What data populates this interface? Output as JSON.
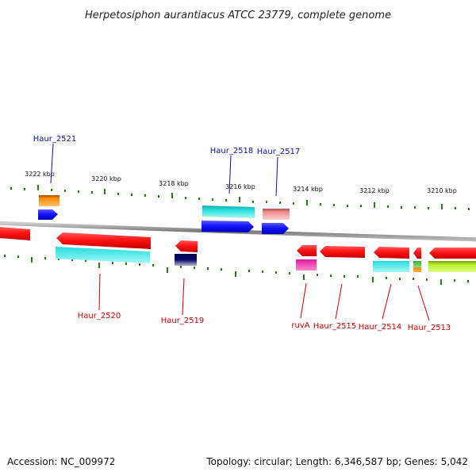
{
  "title": "Herpetosiphon aurantiacus ATCC 23779, complete genome",
  "footer": {
    "accession": "Accession: NC_009972",
    "summary": "Topology: circular; Length: 6,346,587 bp; Genes: 5,042"
  },
  "scale_labels": [
    "3222 kbp",
    "3220 kbp",
    "3218 kbp",
    "3216 kbp",
    "3214 kbp",
    "3212 kbp",
    "3210 kbp"
  ],
  "gene_labels": [
    {
      "text": "Haur_2521",
      "strand": "forward"
    },
    {
      "text": "Haur_2518",
      "strand": "forward"
    },
    {
      "text": "Haur_2517",
      "strand": "forward"
    },
    {
      "text": "Haur_2520",
      "strand": "reverse"
    },
    {
      "text": "Haur_2519",
      "strand": "reverse"
    },
    {
      "text": "ruvA",
      "strand": "reverse"
    },
    {
      "text": "Haur_2515",
      "strand": "reverse"
    },
    {
      "text": "Haur_2514",
      "strand": "reverse"
    },
    {
      "text": "Haur_2513",
      "strand": "reverse"
    }
  ],
  "colors": {
    "forward_label": "#1010a0",
    "reverse_label": "#cc0000",
    "backbone": "#8a8a8a",
    "ticks": "#2a7a1a",
    "gene_red": "#ff1a1a",
    "gene_blue": "#1a1aff",
    "gene_cyan": "#22dede",
    "gene_orange": "#ff8c00",
    "gene_pink": "#f08a8a",
    "gene_magenta": "#e0189a",
    "gene_navy": "#0a0a6e",
    "gene_lime": "#b2ee22",
    "gene_green": "#30b030"
  }
}
